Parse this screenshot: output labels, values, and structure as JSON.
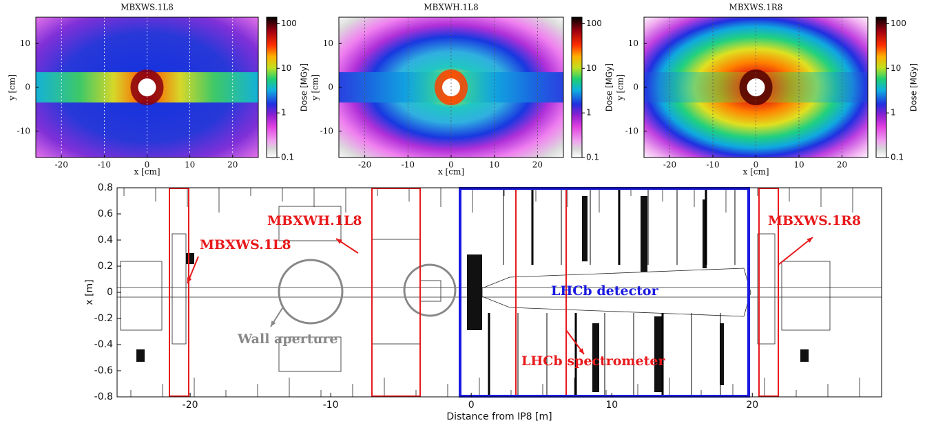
{
  "chart_data": [
    {
      "type": "heatmap",
      "title": "MBXWS.1L8",
      "xlabel": "x [cm]",
      "ylabel": "y [cm]",
      "xlim": [
        -26,
        26
      ],
      "ylim": [
        -16,
        16
      ],
      "xticks": [
        -20,
        -10,
        0,
        10,
        20
      ],
      "yticks": [
        -10,
        0,
        10
      ],
      "grid": true,
      "colorbar": {
        "label": "Dose [MGy]",
        "log": true,
        "lim": [
          0.1,
          140
        ],
        "ticks": [
          0.1,
          1,
          10,
          100
        ]
      }
    },
    {
      "type": "heatmap",
      "title": "MBXWH.1L8",
      "xlabel": "x [cm]",
      "ylabel": "y [cm]",
      "xlim": [
        -26,
        26
      ],
      "ylim": [
        -16,
        16
      ],
      "xticks": [
        -20,
        -10,
        0,
        10,
        20
      ],
      "yticks": [
        -10,
        0,
        10
      ],
      "grid": true,
      "colorbar": {
        "label": "Dose [MGy]",
        "log": true,
        "lim": [
          0.1,
          140
        ],
        "ticks": [
          0.1,
          1,
          10,
          100
        ]
      }
    },
    {
      "type": "heatmap",
      "title": "MBXWS.1R8",
      "xlabel": "x [cm]",
      "ylabel": "y [cm]",
      "xlim": [
        -26,
        26
      ],
      "ylim": [
        -16,
        16
      ],
      "xticks": [
        -20,
        -10,
        0,
        10,
        20
      ],
      "yticks": [
        -10,
        0,
        10
      ],
      "grid": true,
      "colorbar": {
        "label": "Dose [MGy]",
        "log": true,
        "lim": [
          0.1,
          140
        ],
        "ticks": [
          0.1,
          1,
          10,
          100
        ]
      }
    },
    {
      "type": "schematic",
      "xlabel": "Distance from IP8 [m]",
      "ylabel": "x [m]",
      "xlim": [
        -25.2,
        29.2
      ],
      "ylim": [
        -0.8,
        0.8
      ],
      "xticks": [
        -20,
        -10,
        0,
        10,
        20
      ],
      "yticks": [
        -0.8,
        -0.6,
        -0.4,
        -0.2,
        0,
        0.2,
        0.4,
        0.6,
        0.8
      ],
      "annotations": [
        {
          "text": "MBXWS.1L8",
          "color": "#e8191b"
        },
        {
          "text": "MBXWH.1L8",
          "color": "#e8191b"
        },
        {
          "text": "MBXWS.1R8",
          "color": "#e8191b"
        },
        {
          "text": "Wall aperture",
          "color": "#888888"
        },
        {
          "text": "LHCb detector",
          "color": "#1a1ae0"
        },
        {
          "text": "LHCb spectrometer",
          "color": "#e8191b"
        }
      ]
    }
  ]
}
